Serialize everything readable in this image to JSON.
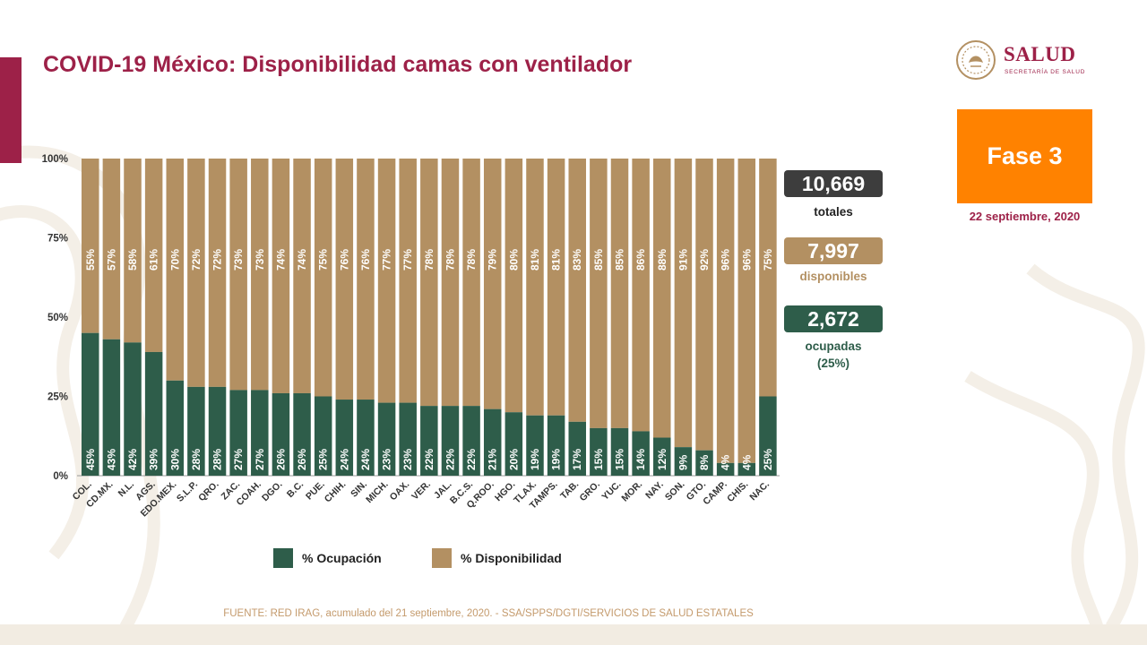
{
  "title": "COVID-19 México: Disponibilidad camas con ventilador",
  "logo": {
    "word": "SALUD",
    "sub": "SECRETARÍA DE SALUD"
  },
  "phase": {
    "label": "Fase 3",
    "date": "22 septiembre, 2020"
  },
  "colors": {
    "brand": "#9d2148",
    "occupied": "#2e5d4a",
    "available": "#b39062",
    "phase": "#ff8200",
    "totals_box": "#3d3d3d"
  },
  "stats": {
    "total": {
      "value": "10,669",
      "label": "totales"
    },
    "available": {
      "value": "7,997",
      "label": "disponibles"
    },
    "occupied": {
      "value": "2,672",
      "label": "ocupadas",
      "pct": "(25%)"
    }
  },
  "legend": {
    "occupied": "% Ocupación",
    "available": "% Disponibilidad"
  },
  "source": "FUENTE: RED IRAG, acumulado del 21 septiembre, 2020. -   SSA/SPPS/DGTI/SERVICIOS DE SALUD ESTATALES",
  "chart_data": {
    "type": "bar",
    "stacked": true,
    "ylim": [
      0,
      100
    ],
    "yticks": [
      "0%",
      "25%",
      "50%",
      "75%",
      "100%"
    ],
    "categories": [
      "COL.",
      "CD.MX.",
      "N.L.",
      "AGS.",
      "EDO.MEX.",
      "S.L.P.",
      "QRO.",
      "ZAC.",
      "COAH.",
      "DGO.",
      "B.C.",
      "PUE.",
      "CHIH.",
      "SIN.",
      "MICH.",
      "OAX.",
      "VER.",
      "JAL.",
      "B.C.S.",
      "Q.ROO.",
      "HGO.",
      "TLAX.",
      "TAMPS.",
      "TAB.",
      "GRO.",
      "YUC.",
      "MOR.",
      "NAY.",
      "SON.",
      "GTO.",
      "CAMP.",
      "CHIS.",
      "NAC."
    ],
    "series": [
      {
        "name": "% Ocupación",
        "values": [
          45,
          43,
          42,
          39,
          30,
          28,
          28,
          27,
          27,
          26,
          26,
          25,
          24,
          24,
          23,
          23,
          22,
          22,
          22,
          21,
          20,
          19,
          19,
          17,
          15,
          15,
          14,
          12,
          9,
          8,
          4,
          4,
          25
        ]
      },
      {
        "name": "% Disponibilidad",
        "values": [
          55,
          57,
          58,
          61,
          70,
          72,
          72,
          73,
          73,
          74,
          74,
          75,
          76,
          76,
          77,
          77,
          78,
          78,
          78,
          79,
          80,
          81,
          81,
          83,
          85,
          85,
          86,
          88,
          91,
          92,
          96,
          96,
          75
        ]
      }
    ],
    "grid": false,
    "legend": "bottom"
  }
}
